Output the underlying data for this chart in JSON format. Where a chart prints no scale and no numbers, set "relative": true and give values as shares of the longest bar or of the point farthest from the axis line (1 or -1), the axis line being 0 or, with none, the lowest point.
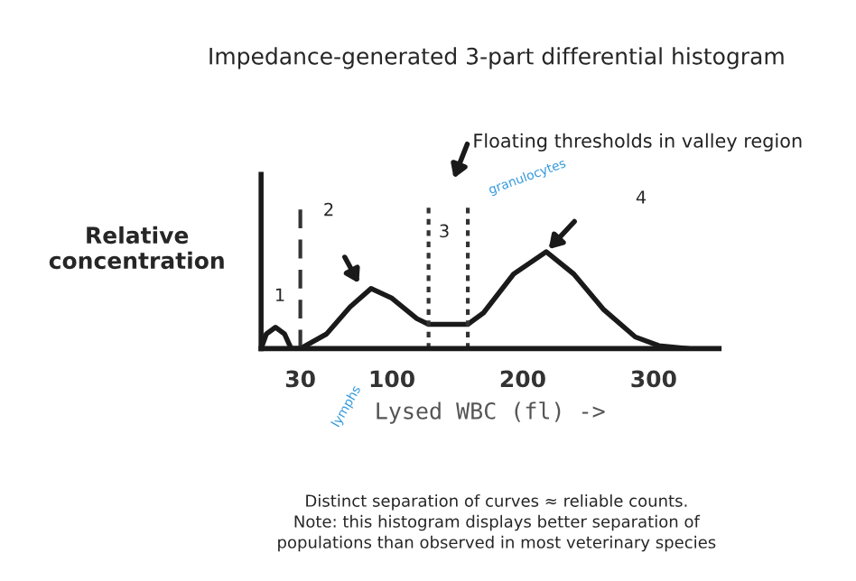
{
  "chart_data": {
    "type": "line",
    "relative": true,
    "title": "Impedance-generated 3-part differential histogram",
    "xlabel": "Lysed WBC (fl) ->",
    "ylabel": "Relative concentration",
    "xlim": [
      0,
      350
    ],
    "xticks": [
      30,
      100,
      200,
      300
    ],
    "series": [
      {
        "color": "#1a1a1a",
        "x": [
          0,
          4,
          11,
          18,
          23,
          30,
          50,
          68,
          84,
          100,
          119,
          128,
          158,
          170,
          193,
          218,
          239,
          262,
          286,
          304,
          327
        ],
        "values": [
          0,
          0.15,
          0.22,
          0.15,
          0,
          0,
          0.15,
          0.43,
          0.62,
          0.52,
          0.31,
          0.25,
          0.25,
          0.37,
          0.77,
          1.0,
          0.77,
          0.4,
          0.12,
          0.03,
          0
        ]
      }
    ],
    "ref_lines": [
      {
        "axis": "x",
        "value": 30,
        "line_style": "dashed"
      },
      {
        "axis": "x",
        "value": 128,
        "line_style": "dotted"
      },
      {
        "axis": "x",
        "value": 158,
        "line_style": "dotted"
      }
    ],
    "annotations": [
      "Floating thresholds in valley region",
      "1",
      "2",
      "3",
      "4",
      "lymphs",
      "granulocytes",
      "Distinct separation of curves ≈ reliable counts.\nNote: this histogram displays better separation of\npopulations than observed in most veterinary species"
    ],
    "grid": false,
    "marker": "none",
    "line_style": "solid"
  }
}
